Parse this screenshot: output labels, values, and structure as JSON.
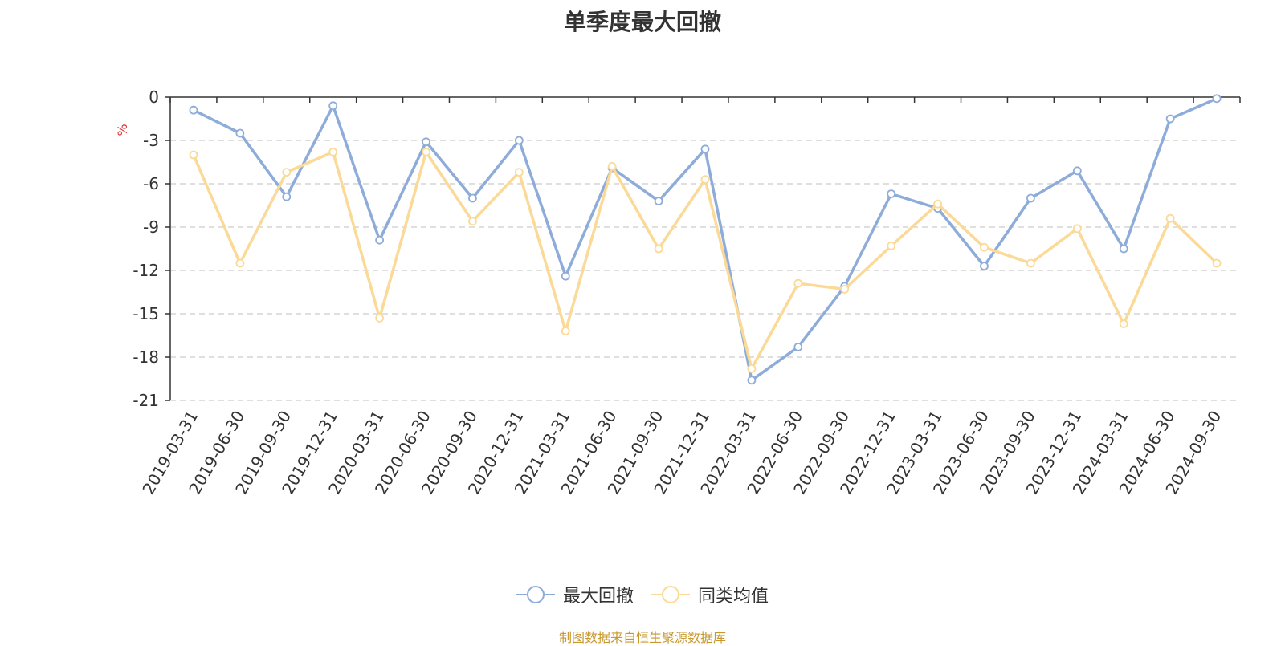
{
  "title": "单季度最大回撤",
  "source": "制图数据来自恒生聚源数据库",
  "chart_data": {
    "type": "line",
    "title": "单季度最大回撤",
    "ylabel": "%",
    "xlabel": "",
    "ylim": [
      -21,
      0
    ],
    "yticks": [
      0,
      -3,
      -6,
      -9,
      -12,
      -15,
      -18,
      -21
    ],
    "grid": true,
    "legend_position": "bottom-center",
    "categories": [
      "2019-03-31",
      "2019-06-30",
      "2019-09-30",
      "2019-12-31",
      "2020-03-31",
      "2020-06-30",
      "2020-09-30",
      "2020-12-31",
      "2021-03-31",
      "2021-06-30",
      "2021-09-30",
      "2021-12-31",
      "2022-03-31",
      "2022-06-30",
      "2022-09-30",
      "2022-12-31",
      "2023-03-31",
      "2023-06-30",
      "2023-09-30",
      "2023-12-31",
      "2024-03-31",
      "2024-06-30",
      "2024-09-30"
    ],
    "series": [
      {
        "name": "最大回撤",
        "color": "#8eacd9",
        "values": [
          -0.9,
          -2.5,
          -6.9,
          -0.6,
          -9.9,
          -3.1,
          -7.0,
          -3.0,
          -12.4,
          -4.9,
          -7.2,
          -3.6,
          -19.6,
          -17.3,
          -13.1,
          -6.7,
          -7.7,
          -11.7,
          -7.0,
          -5.1,
          -10.5,
          -1.5,
          -0.1
        ]
      },
      {
        "name": "同类均值",
        "color": "#fbd996",
        "values": [
          -4.0,
          -11.5,
          -5.2,
          -3.8,
          -15.3,
          -3.8,
          -8.6,
          -5.2,
          -16.2,
          -4.8,
          -10.5,
          -5.7,
          -18.8,
          -12.9,
          -13.3,
          -10.3,
          -7.4,
          -10.4,
          -11.5,
          -9.1,
          -15.7,
          -8.4,
          -11.5
        ]
      }
    ]
  }
}
